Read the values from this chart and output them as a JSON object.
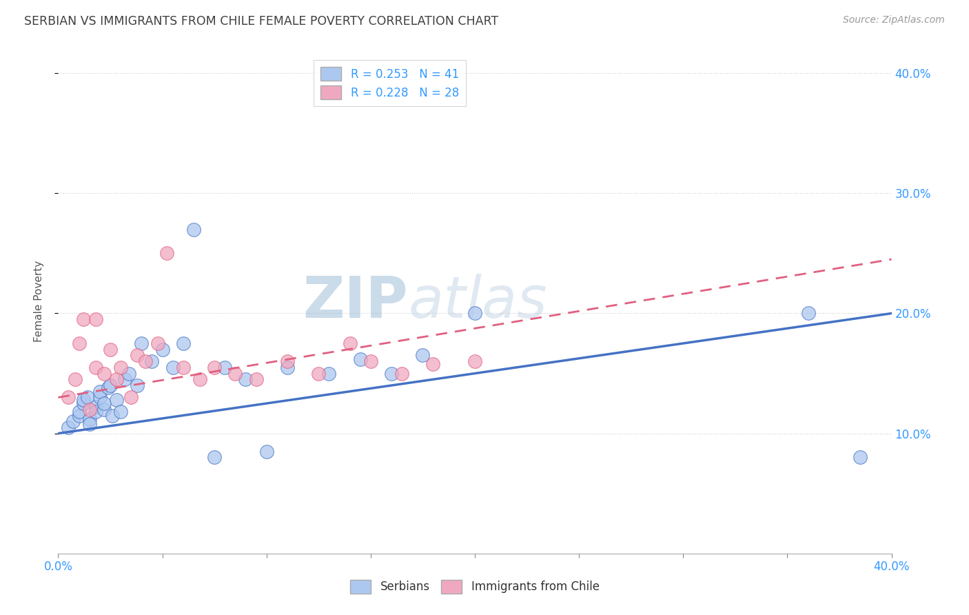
{
  "title": "SERBIAN VS IMMIGRANTS FROM CHILE FEMALE POVERTY CORRELATION CHART",
  "source_text": "Source: ZipAtlas.com",
  "ylabel": "Female Poverty",
  "legend_label_1": "Serbians",
  "legend_label_2": "Immigrants from Chile",
  "r1": 0.253,
  "n1": 41,
  "r2": 0.228,
  "n2": 28,
  "xlim": [
    0.0,
    0.4
  ],
  "ylim": [
    0.0,
    0.42
  ],
  "yticks": [
    0.1,
    0.2,
    0.3,
    0.4
  ],
  "color_serbian": "#adc8f0",
  "color_chile": "#f0a8c0",
  "color_line1": "#4472c4",
  "color_line2": "#e06080",
  "watermark_color": "#c8d8ec",
  "title_color": "#404040",
  "axis_label_color": "#555555",
  "tick_color": "#3399ff",
  "serbian_x": [
    0.005,
    0.007,
    0.01,
    0.01,
    0.012,
    0.012,
    0.014,
    0.015,
    0.015,
    0.018,
    0.018,
    0.02,
    0.02,
    0.022,
    0.022,
    0.024,
    0.025,
    0.026,
    0.028,
    0.03,
    0.032,
    0.034,
    0.038,
    0.04,
    0.045,
    0.05,
    0.055,
    0.06,
    0.065,
    0.075,
    0.08,
    0.09,
    0.1,
    0.11,
    0.13,
    0.145,
    0.16,
    0.175,
    0.2,
    0.36,
    0.385
  ],
  "serbian_y": [
    0.105,
    0.11,
    0.115,
    0.118,
    0.125,
    0.128,
    0.13,
    0.112,
    0.108,
    0.122,
    0.118,
    0.13,
    0.135,
    0.12,
    0.125,
    0.138,
    0.14,
    0.115,
    0.128,
    0.118,
    0.145,
    0.15,
    0.14,
    0.175,
    0.16,
    0.17,
    0.155,
    0.175,
    0.27,
    0.08,
    0.155,
    0.145,
    0.085,
    0.155,
    0.15,
    0.162,
    0.15,
    0.165,
    0.2,
    0.2,
    0.08
  ],
  "chile_x": [
    0.005,
    0.008,
    0.01,
    0.012,
    0.015,
    0.018,
    0.018,
    0.022,
    0.025,
    0.028,
    0.03,
    0.035,
    0.038,
    0.042,
    0.048,
    0.052,
    0.06,
    0.068,
    0.075,
    0.085,
    0.095,
    0.11,
    0.125,
    0.14,
    0.15,
    0.165,
    0.18,
    0.2
  ],
  "chile_y": [
    0.13,
    0.145,
    0.175,
    0.195,
    0.12,
    0.155,
    0.195,
    0.15,
    0.17,
    0.145,
    0.155,
    0.13,
    0.165,
    0.16,
    0.175,
    0.25,
    0.155,
    0.145,
    0.155,
    0.15,
    0.145,
    0.16,
    0.15,
    0.175,
    0.16,
    0.15,
    0.158,
    0.16
  ]
}
